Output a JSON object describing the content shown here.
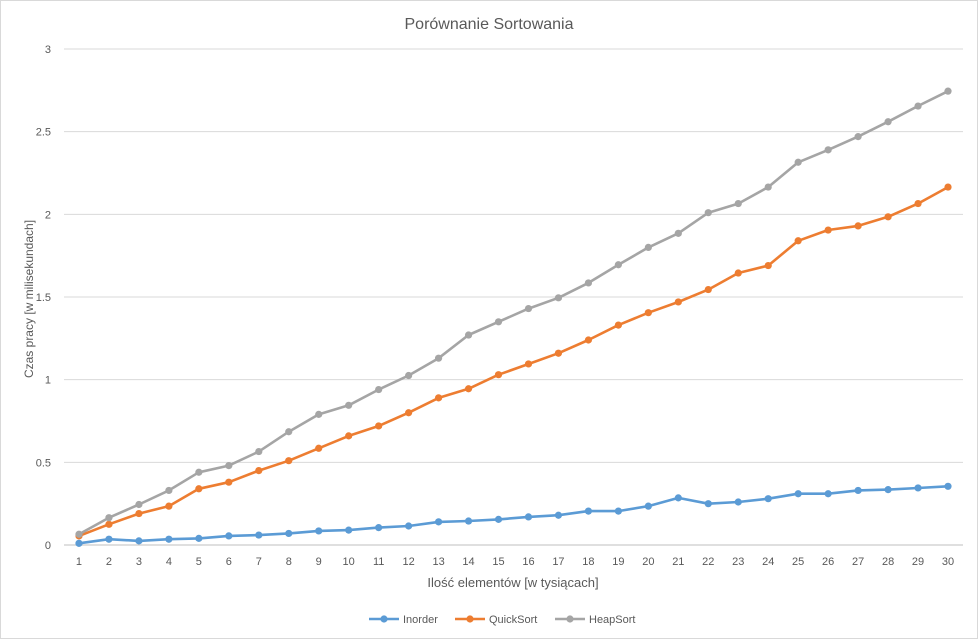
{
  "chart_data": {
    "type": "line",
    "title": "Porównanie Sortowania",
    "xlabel": "Ilość elementów [w tysiącach]",
    "ylabel": "Czas pracy [w milisekundach]",
    "categories": [
      "1",
      "2",
      "3",
      "4",
      "5",
      "6",
      "7",
      "8",
      "9",
      "10",
      "11",
      "12",
      "13",
      "14",
      "15",
      "16",
      "17",
      "18",
      "19",
      "20",
      "21",
      "22",
      "23",
      "24",
      "25",
      "26",
      "27",
      "28",
      "29",
      "30"
    ],
    "ylim": [
      0,
      3
    ],
    "yticks": [
      "0",
      "0.5",
      "1",
      "1.5",
      "2",
      "2.5",
      "3"
    ],
    "grid": true,
    "legend_position": "bottom",
    "series": [
      {
        "name": "Inorder",
        "color": "#5b9bd5",
        "values": [
          0.01,
          0.035,
          0.025,
          0.035,
          0.04,
          0.055,
          0.06,
          0.07,
          0.085,
          0.09,
          0.105,
          0.115,
          0.14,
          0.145,
          0.155,
          0.17,
          0.18,
          0.205,
          0.205,
          0.235,
          0.285,
          0.25,
          0.26,
          0.28,
          0.31,
          0.31,
          0.33,
          0.335,
          0.345,
          0.355
        ]
      },
      {
        "name": "QuickSort",
        "color": "#ed7d31",
        "values": [
          0.055,
          0.125,
          0.19,
          0.235,
          0.34,
          0.38,
          0.45,
          0.51,
          0.585,
          0.66,
          0.72,
          0.8,
          0.89,
          0.945,
          1.03,
          1.095,
          1.16,
          1.24,
          1.33,
          1.405,
          1.47,
          1.545,
          1.645,
          1.69,
          1.84,
          1.905,
          1.93,
          1.985,
          2.065,
          2.165
        ]
      },
      {
        "name": "HeapSort",
        "color": "#a5a5a5",
        "values": [
          0.065,
          0.165,
          0.245,
          0.33,
          0.44,
          0.48,
          0.565,
          0.685,
          0.79,
          0.845,
          0.94,
          1.025,
          1.13,
          1.27,
          1.35,
          1.43,
          1.495,
          1.585,
          1.695,
          1.8,
          1.885,
          2.01,
          2.065,
          2.165,
          2.315,
          2.39,
          2.47,
          2.56,
          2.655,
          2.745
        ]
      }
    ]
  }
}
